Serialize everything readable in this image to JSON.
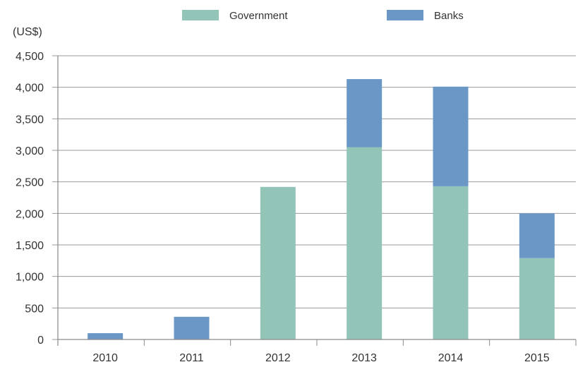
{
  "chart_data": {
    "type": "bar",
    "stacked": true,
    "title": "",
    "xlabel": "",
    "ylabel": "(US$)",
    "ylim": [
      0,
      4500
    ],
    "yticks": [
      "0",
      "500",
      "1,000",
      "1,500",
      "2,000",
      "2,500",
      "3,000",
      "3,500",
      "4,000",
      "4,500"
    ],
    "ytick_values": [
      0,
      500,
      1000,
      1500,
      2000,
      2500,
      3000,
      3500,
      4000,
      4500
    ],
    "categories": [
      "2010",
      "2011",
      "2012",
      "2013",
      "2014",
      "2015"
    ],
    "series": [
      {
        "name": "Government",
        "color": "#93c4b8",
        "values": [
          0,
          0,
          2420,
          3050,
          2430,
          1290
        ]
      },
      {
        "name": "Banks",
        "color": "#6b97c7",
        "values": [
          100,
          360,
          0,
          1080,
          1580,
          710
        ]
      }
    ],
    "legend_position": "top-center",
    "grid": "horizontal"
  }
}
